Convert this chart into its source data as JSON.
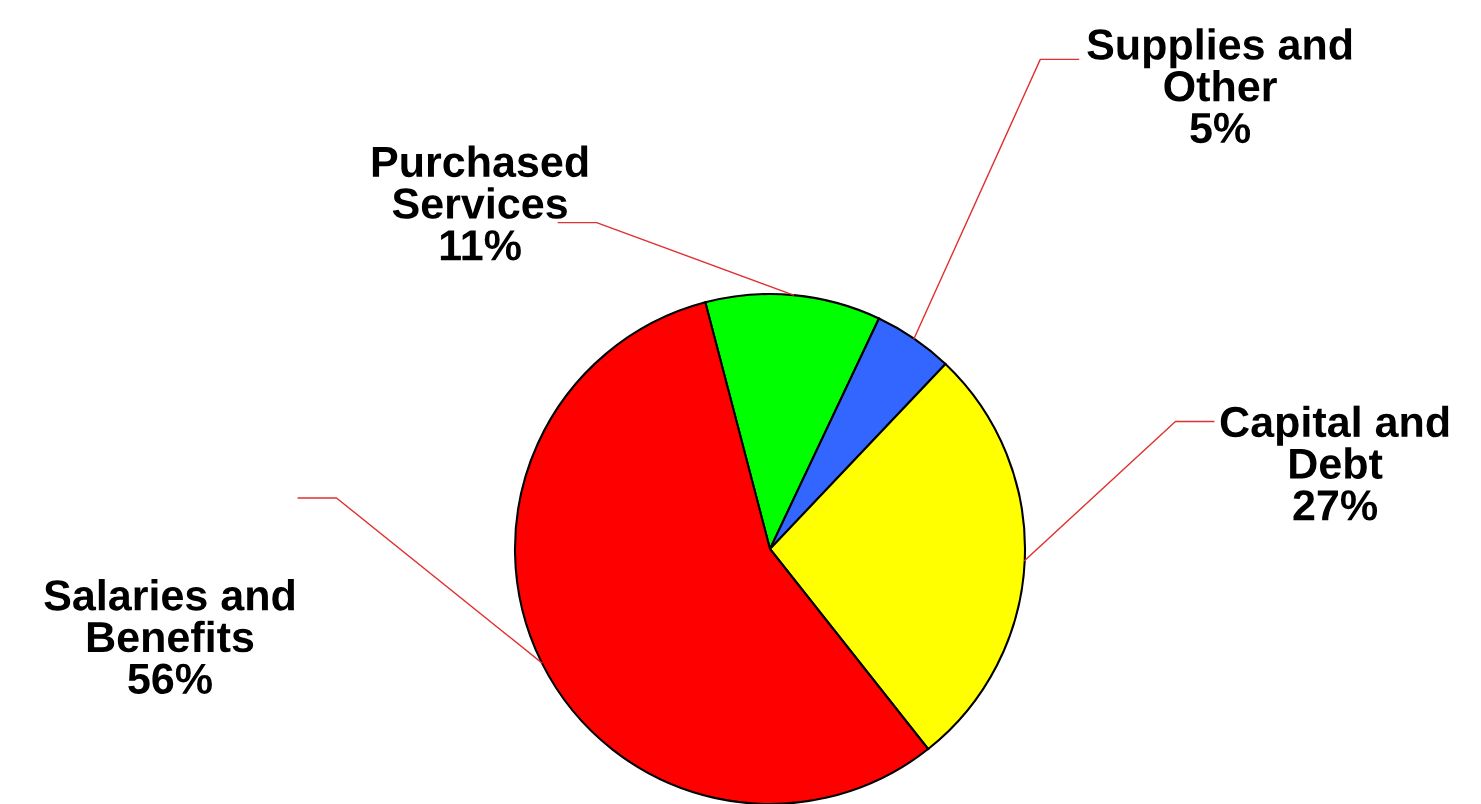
{
  "chart_data": {
    "type": "pie",
    "categories": [
      "Purchased Services",
      "Supplies and Other",
      "Capital and Debt",
      "Salaries and Benefits"
    ],
    "values": [
      11,
      5,
      27,
      56
    ],
    "colors": [
      "#00ff00",
      "#3366ff",
      "#ffff00",
      "#ff0000"
    ],
    "value_labels": [
      "11%",
      "5%",
      "27%",
      "56%"
    ]
  }
}
